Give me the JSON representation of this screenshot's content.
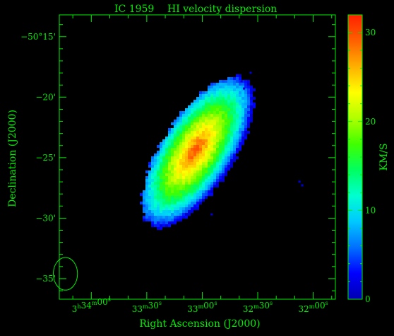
{
  "chart_data": {
    "type": "heatmap",
    "title_object": "IC 1959",
    "title_text": "HI velocity dispersion",
    "xlabel": "Right Ascension (J2000)",
    "ylabel": "Declination (J2000)",
    "colorbar_label": "KM/S",
    "colorbar_range": [
      0,
      32
    ],
    "colorbar_ticks": [
      "0",
      "10",
      "20",
      "30"
    ],
    "colorbar_tick_values": [
      0,
      10,
      20,
      30
    ],
    "colormap": [
      "#0000b0",
      "#0000ff",
      "#0070ff",
      "#00c8ff",
      "#00ffd0",
      "#00ff60",
      "#40ff00",
      "#b0ff00",
      "#ffff00",
      "#ffb000",
      "#ff6000",
      "#ff2000"
    ],
    "x_ticks": [
      {
        "h": "3",
        "m": "34",
        "s": "00",
        "value_sec": 0
      },
      {
        "h": "",
        "m": "33",
        "s": "30",
        "value_sec": -30
      },
      {
        "h": "",
        "m": "33",
        "s": "00",
        "value_sec": -60
      },
      {
        "h": "",
        "m": "32",
        "s": "30",
        "value_sec": -90
      },
      {
        "h": "",
        "m": "32",
        "s": "00",
        "value_sec": -120
      }
    ],
    "x_range_sec": [
      17.3,
      -132
    ],
    "y_ticks": [
      {
        "label": "−50°15'",
        "value_min": -15
      },
      {
        "label": "−20'",
        "value_min": -20
      },
      {
        "label": "−25'",
        "value_min": -25
      },
      {
        "label": "−30'",
        "value_min": -30
      },
      {
        "label": "−35'",
        "value_min": -35
      }
    ],
    "y_range_min": [
      -13.2,
      -36.7
    ],
    "galaxy": {
      "center_ra_sec": -57.6,
      "center_dec_min": -24.55,
      "major_axis_arcmin": 14.4,
      "minor_axis_arcmin": 6.0,
      "position_angle_deg": 33,
      "peak_dispersion": 30,
      "edge_dispersion": 2
    },
    "beam": {
      "ra_sec": 14,
      "dec_min": -34.6,
      "major_arcmin": 2.7,
      "minor_arcmin": 2.0
    }
  }
}
